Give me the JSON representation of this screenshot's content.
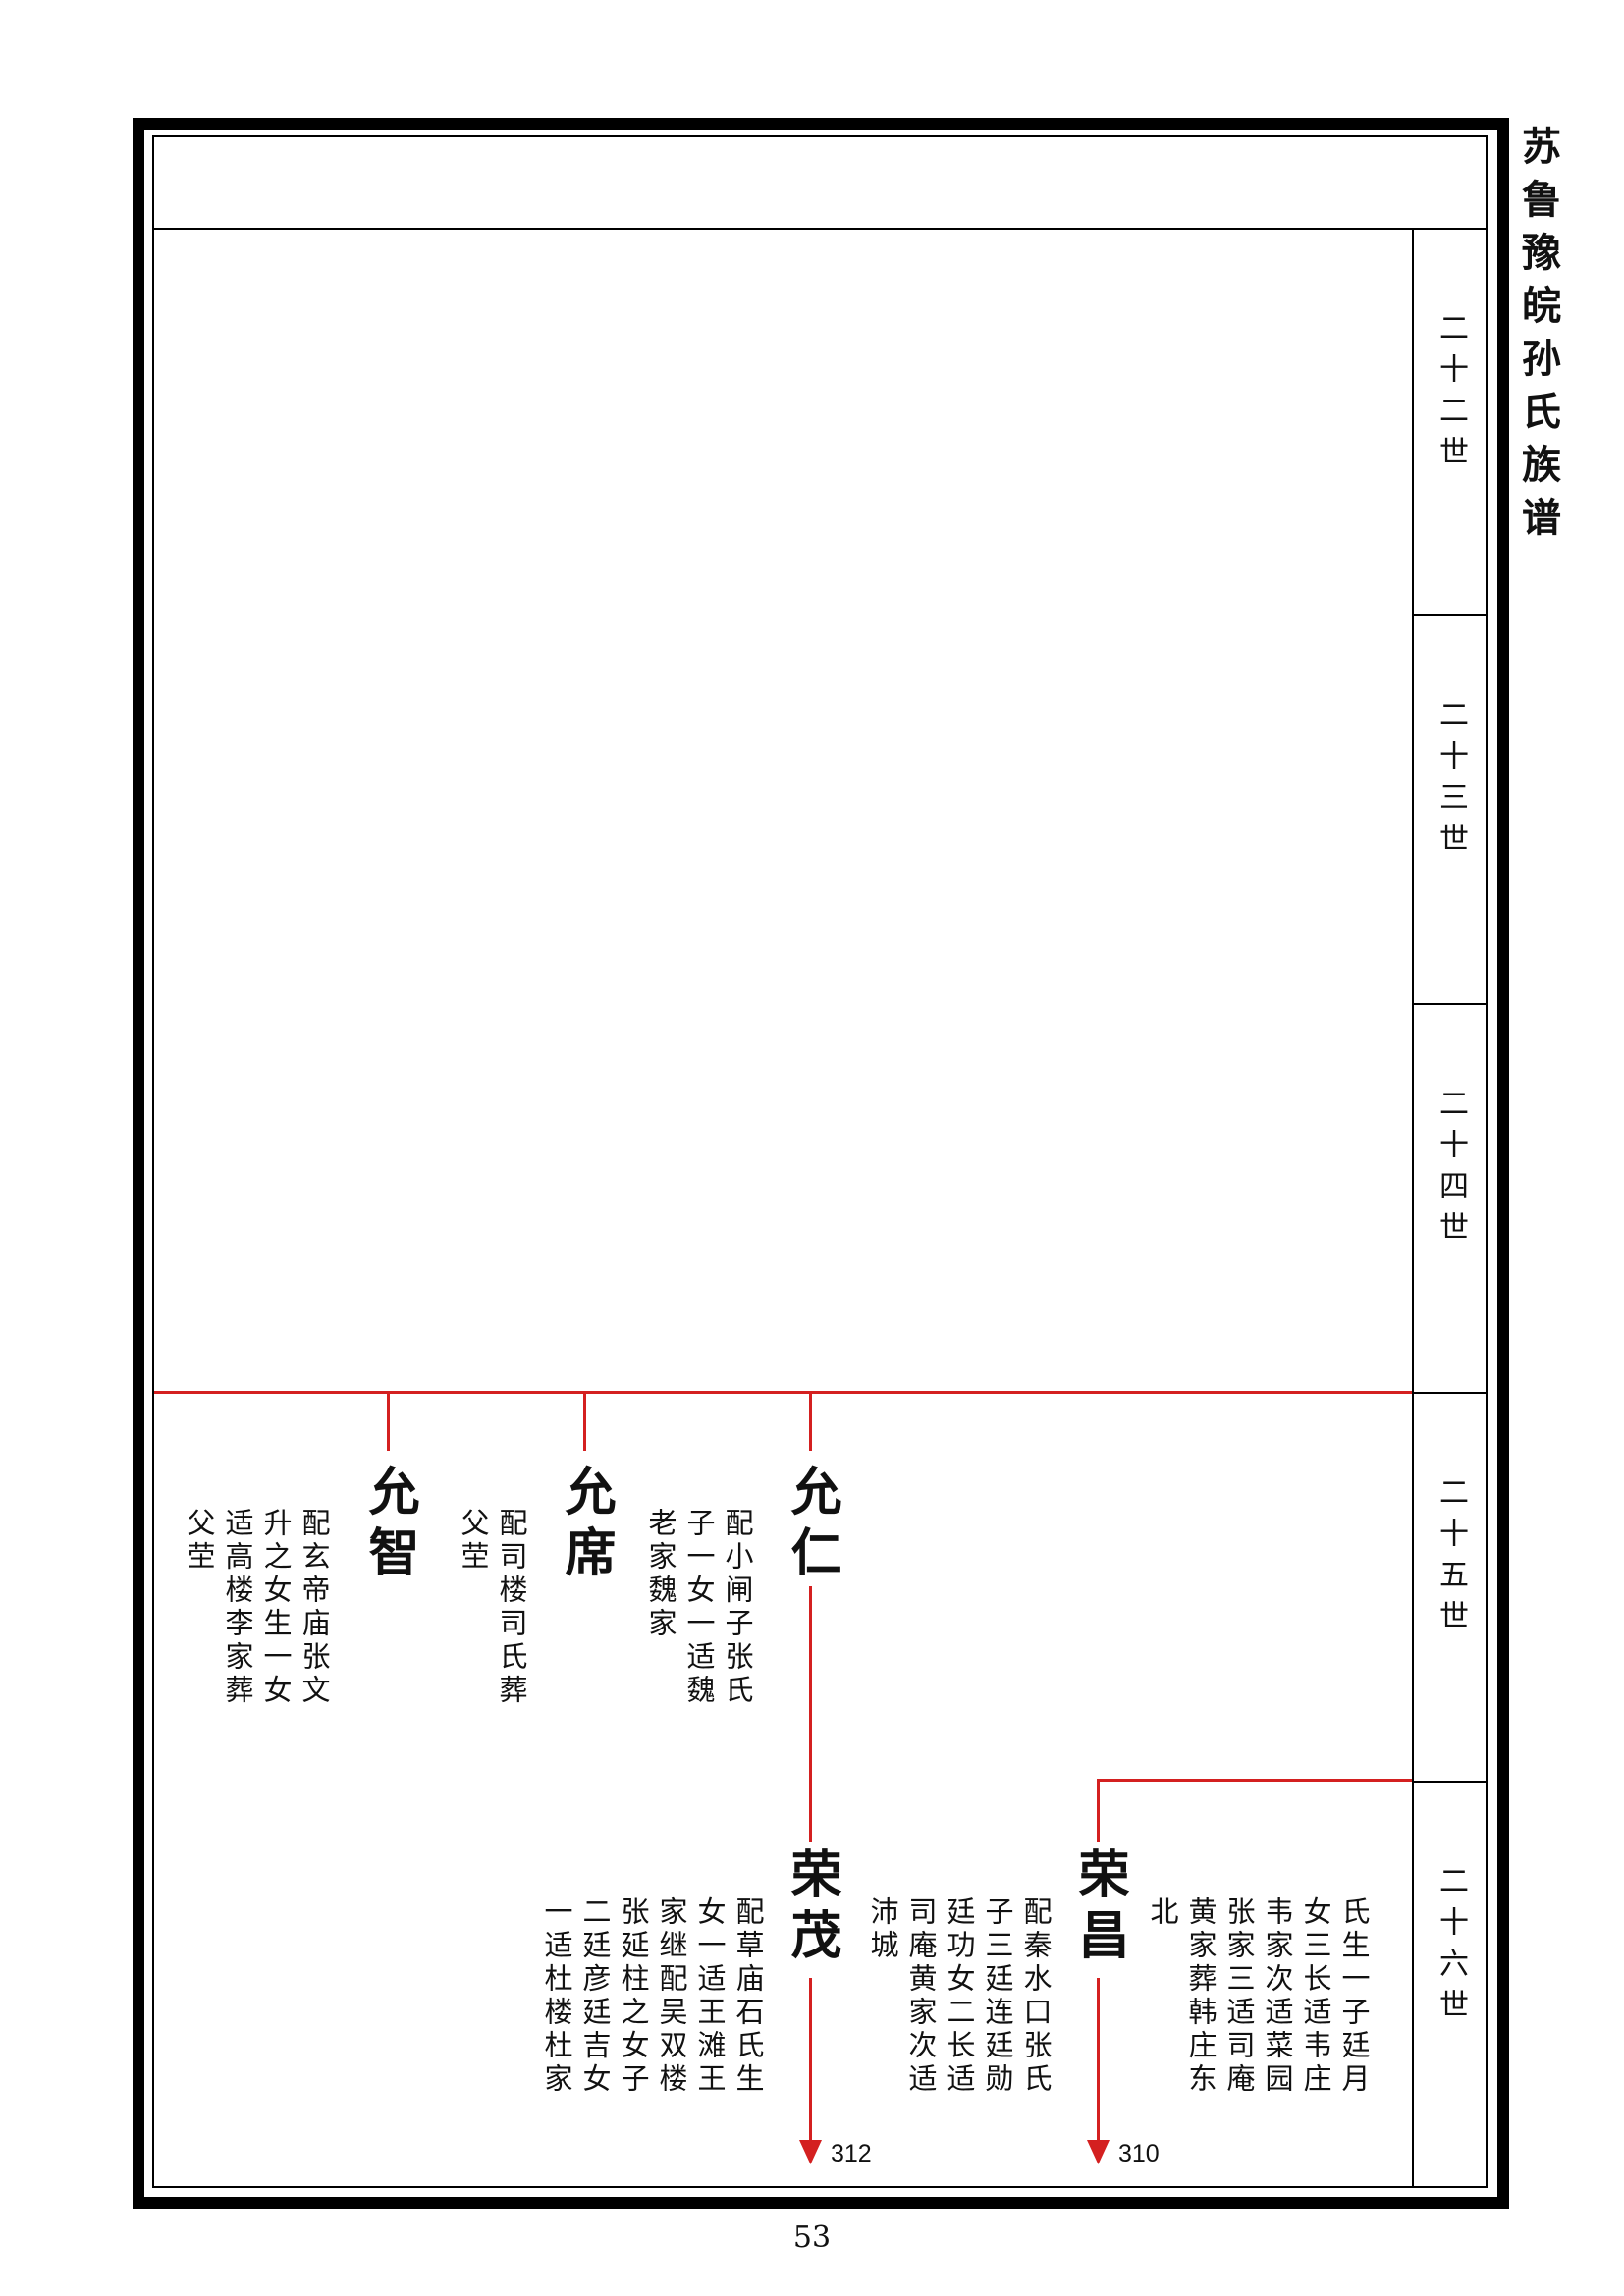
{
  "book_title": "苏鲁豫皖孙氏族谱",
  "generations": [
    "二十二世",
    "二十三世",
    "二十四世",
    "二十五世",
    "二十六世"
  ],
  "members": {
    "yun_zhi": {
      "name": "允智",
      "note": [
        "配玄帝庙张文",
        "升之女生一女",
        "适高楼李家葬",
        "父茔"
      ]
    },
    "yun_xi": {
      "name": "允席",
      "note": [
        "配司楼司氏葬",
        "父茔"
      ]
    },
    "yun_ren": {
      "name": "允仁",
      "note": [
        "配小闸子张氏",
        "子一女一适魏",
        "老家魏家"
      ]
    },
    "rong_mao": {
      "name": "荣茂",
      "note": [
        "配草庙石氏生",
        "女一适王滩王",
        "家继配吴双楼",
        "张延柱之女子",
        "二廷彦廷吉女",
        "一适杜楼杜家"
      ],
      "continue_page": "312"
    },
    "rong_chang": {
      "name": "荣昌",
      "note": [
        "配秦水口张氏",
        "子三廷连廷勋",
        "廷功女二长适",
        "司庵黄家次适",
        "沛城",
        "北",
        "黄家葬韩庄东",
        "张家三适司庵",
        "韦家次适菜园",
        "女三长适韦庄",
        "氏生一子廷月"
      ],
      "continue_page": "310"
    }
  },
  "page_number": "53",
  "colors": {
    "line": "#d42020",
    "frame": "#000000"
  }
}
